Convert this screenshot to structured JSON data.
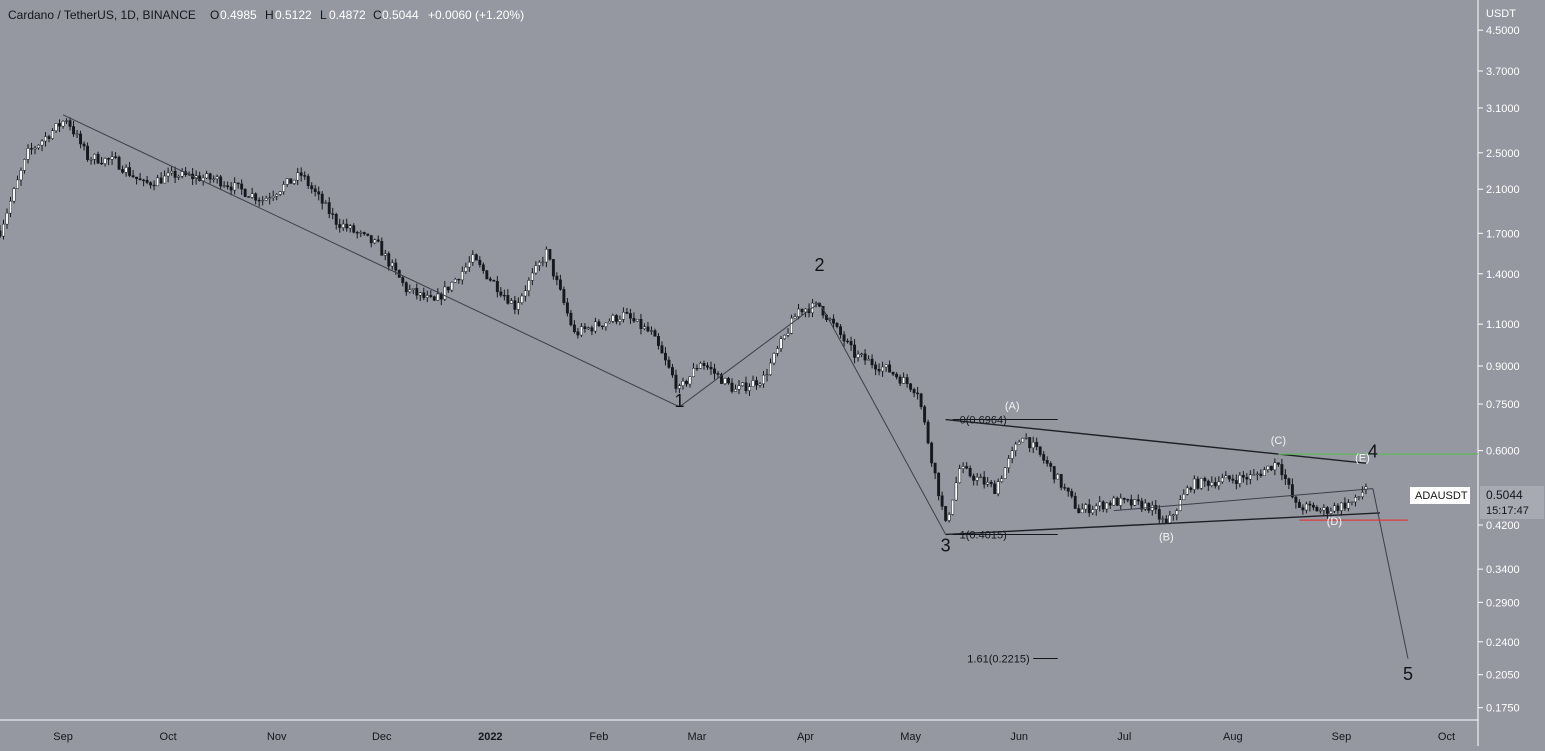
{
  "header": {
    "symbol": "Cardano / TetherUS, 1D, BINANCE",
    "o_label": "O",
    "o_value": "0.4985",
    "h_label": "H",
    "h_value": "0.5122",
    "l_label": "L",
    "l_value": "0.4872",
    "c_label": "C",
    "c_value": "0.5044",
    "change": "+0.0060 (+1.20%)"
  },
  "price_axis": {
    "unit": "USDT",
    "ticks": [
      "4.5000",
      "3.7000",
      "3.1000",
      "2.5000",
      "2.1000",
      "1.7000",
      "1.4000",
      "1.1000",
      "0.9000",
      "0.7500",
      "0.6000",
      "0.4200",
      "0.3400",
      "0.2900",
      "0.2400",
      "0.2050",
      "0.1750"
    ]
  },
  "time_axis": {
    "ticks": [
      "Sep",
      "Oct",
      "Nov",
      "Dec",
      "2022",
      "Feb",
      "Mar",
      "Apr",
      "May",
      "Jun",
      "Jul",
      "Aug",
      "Sep",
      "Oct"
    ]
  },
  "last_price": {
    "label": "ADAUSDT",
    "value": "0.5044",
    "countdown": "15:17:47"
  },
  "colors": {
    "background": "#9598a1",
    "candle": "#16181d",
    "trendline": "#3c3f47",
    "resistance": "#5fb85a",
    "support": "#e03a3a",
    "wave_label": "#111318",
    "sub_wave_label": "#f4f4f6"
  },
  "chart_data": {
    "type": "candlestick",
    "title": "Cardano / TetherUS, 1D, BINANCE",
    "ylabel": "USDT",
    "y_scale": "log",
    "ylim": [
      0.165,
      5.2
    ],
    "x_range": [
      "2021-08-14",
      "2022-10-10"
    ],
    "last_ohlc": {
      "open": 0.4985,
      "high": 0.5122,
      "low": 0.4872,
      "close": 0.5044,
      "change": 0.006,
      "change_pct": 1.2
    },
    "price_path": [
      {
        "date": "2021-08-14",
        "price": 1.72
      },
      {
        "date": "2021-08-22",
        "price": 2.5
      },
      {
        "date": "2021-09-02",
        "price": 2.95
      },
      {
        "date": "2021-09-08",
        "price": 2.45
      },
      {
        "date": "2021-09-16",
        "price": 2.4
      },
      {
        "date": "2021-09-24",
        "price": 2.15
      },
      {
        "date": "2021-10-03",
        "price": 2.25
      },
      {
        "date": "2021-10-15",
        "price": 2.2
      },
      {
        "date": "2021-10-28",
        "price": 2.0
      },
      {
        "date": "2021-11-08",
        "price": 2.25
      },
      {
        "date": "2021-11-18",
        "price": 1.8
      },
      {
        "date": "2021-11-30",
        "price": 1.6
      },
      {
        "date": "2021-12-08",
        "price": 1.3
      },
      {
        "date": "2021-12-16",
        "price": 1.22
      },
      {
        "date": "2021-12-27",
        "price": 1.5
      },
      {
        "date": "2022-01-08",
        "price": 1.2
      },
      {
        "date": "2022-01-17",
        "price": 1.55
      },
      {
        "date": "2022-01-25",
        "price": 1.05
      },
      {
        "date": "2022-02-08",
        "price": 1.15
      },
      {
        "date": "2022-02-16",
        "price": 1.05
      },
      {
        "date": "2022-02-24",
        "price": 0.8
      },
      {
        "date": "2022-03-02",
        "price": 0.92
      },
      {
        "date": "2022-03-12",
        "price": 0.8
      },
      {
        "date": "2022-03-20",
        "price": 0.85
      },
      {
        "date": "2022-03-30",
        "price": 1.18
      },
      {
        "date": "2022-04-05",
        "price": 1.2
      },
      {
        "date": "2022-04-15",
        "price": 0.95
      },
      {
        "date": "2022-04-25",
        "price": 0.88
      },
      {
        "date": "2022-05-03",
        "price": 0.8
      },
      {
        "date": "2022-05-11",
        "price": 0.42
      },
      {
        "date": "2022-05-15",
        "price": 0.55
      },
      {
        "date": "2022-05-25",
        "price": 0.5
      },
      {
        "date": "2022-06-02",
        "price": 0.65
      },
      {
        "date": "2022-06-10",
        "price": 0.55
      },
      {
        "date": "2022-06-18",
        "price": 0.45
      },
      {
        "date": "2022-06-28",
        "price": 0.47
      },
      {
        "date": "2022-07-08",
        "price": 0.46
      },
      {
        "date": "2022-07-13",
        "price": 0.42
      },
      {
        "date": "2022-07-20",
        "price": 0.51
      },
      {
        "date": "2022-07-28",
        "price": 0.52
      },
      {
        "date": "2022-08-07",
        "price": 0.53
      },
      {
        "date": "2022-08-14",
        "price": 0.57
      },
      {
        "date": "2022-08-19",
        "price": 0.46
      },
      {
        "date": "2022-08-27",
        "price": 0.45
      },
      {
        "date": "2022-09-05",
        "price": 0.47
      },
      {
        "date": "2022-09-08",
        "price": 0.5044
      }
    ],
    "wave_labels": [
      {
        "label": "1",
        "date": "2022-02-24",
        "price": 0.74
      },
      {
        "label": "2",
        "date": "2022-04-05",
        "price": 1.42
      },
      {
        "label": "3",
        "date": "2022-05-11",
        "price": 0.37
      },
      {
        "label": "4",
        "date": "2022-09-10",
        "price": 0.58
      },
      {
        "label": "5",
        "date": "2022-09-20",
        "price": 0.2
      }
    ],
    "sub_wave_labels": [
      {
        "label": "(A)",
        "date": "2022-05-30",
        "price": 0.73
      },
      {
        "label": "(B)",
        "date": "2022-07-13",
        "price": 0.39
      },
      {
        "label": "(C)",
        "date": "2022-08-14",
        "price": 0.62
      },
      {
        "label": "(D)",
        "date": "2022-08-30",
        "price": 0.42
      },
      {
        "label": "(E)",
        "date": "2022-09-07",
        "price": 0.57
      }
    ],
    "fib_levels": [
      {
        "label": "0(0.6964)",
        "ratio": 0,
        "price": 0.6964
      },
      {
        "label": "1(0.4015)",
        "ratio": 1,
        "price": 0.4015
      },
      {
        "label": "1.61(0.2215)",
        "ratio": 1.61,
        "price": 0.2215
      }
    ],
    "trendlines": [
      {
        "role": "decline",
        "from": {
          "date": "2021-09-01",
          "price": 3.0
        },
        "to": {
          "date": "2022-02-24",
          "price": 0.74
        }
      },
      {
        "role": "wave",
        "from": {
          "date": "2022-02-24",
          "price": 0.74
        },
        "to": {
          "date": "2022-04-05",
          "price": 1.22
        }
      },
      {
        "role": "wave",
        "from": {
          "date": "2022-04-05",
          "price": 1.22
        },
        "to": {
          "date": "2022-05-11",
          "price": 0.4015
        }
      },
      {
        "role": "triangle-upper",
        "from": {
          "date": "2022-05-11",
          "price": 0.6964
        },
        "to": {
          "date": "2022-09-08",
          "price": 0.565
        }
      },
      {
        "role": "triangle-lower",
        "from": {
          "date": "2022-05-11",
          "price": 0.4015
        },
        "to": {
          "date": "2022-09-12",
          "price": 0.445
        }
      },
      {
        "role": "triangle-inner",
        "from": {
          "date": "2022-06-28",
          "price": 0.45
        },
        "to": {
          "date": "2022-09-10",
          "price": 0.5
        }
      },
      {
        "role": "projection",
        "from": {
          "date": "2022-09-10",
          "price": 0.5
        },
        "to": {
          "date": "2022-09-20",
          "price": 0.2215
        }
      }
    ],
    "horizontal_levels": [
      {
        "role": "resistance",
        "color": "#5fb85a",
        "price": 0.59,
        "from": "2022-08-14",
        "to": "2022-10-10"
      },
      {
        "role": "support",
        "color": "#e03a3a",
        "price": 0.43,
        "from": "2022-08-20",
        "to": "2022-09-20"
      }
    ]
  }
}
